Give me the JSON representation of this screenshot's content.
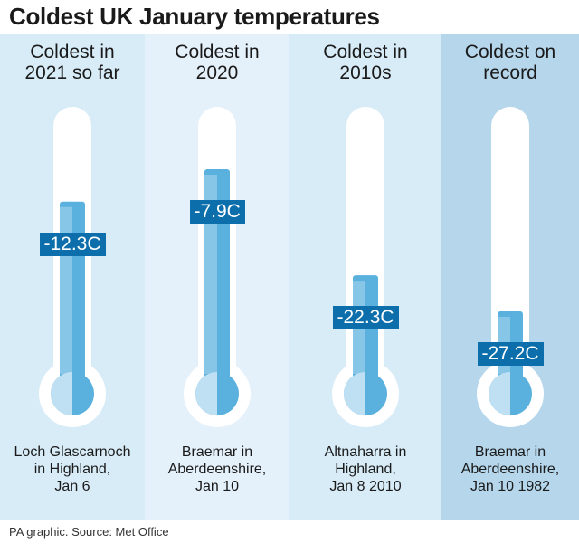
{
  "title": "Coldest UK January temperatures",
  "footer": "PA graphic. Source: Met Office",
  "colors": {
    "panels": [
      "#d8ecf8",
      "#e4f0fa",
      "#d8ecf8",
      "#b5d6eb"
    ],
    "tube": "#ffffff",
    "liquid": "#5bb1de",
    "liquid_light": "#bfe0f3",
    "label_bg": "#0c6fac"
  },
  "chart_data": {
    "type": "bar",
    "categories": [
      "Coldest in 2021 so far",
      "Coldest in 2020",
      "Coldest in 2010s",
      "Coldest on record"
    ],
    "values": [
      -12.3,
      -7.9,
      -22.3,
      -27.2
    ],
    "unit": "C",
    "panels": [
      {
        "heading": [
          "Coldest in",
          "2021 so far"
        ],
        "value": -12.3,
        "label": "-12.3C",
        "caption": [
          "Loch Glascarnoch",
          "in Highland,",
          "Jan 6"
        ]
      },
      {
        "heading": [
          "Coldest in",
          "2020"
        ],
        "value": -7.9,
        "label": "-7.9C",
        "caption": [
          "Braemar in",
          "Aberdeenshire,",
          "Jan 10"
        ]
      },
      {
        "heading": [
          "Coldest in",
          "2010s"
        ],
        "value": -22.3,
        "label": "-22.3C",
        "caption": [
          "Altnaharra in",
          "Highland,",
          "Jan 8 2010"
        ]
      },
      {
        "heading": [
          "Coldest on",
          "record"
        ],
        "value": -27.2,
        "label": "-27.2C",
        "caption": [
          "Braemar in",
          "Aberdeenshire,",
          "Jan 10 1982"
        ]
      }
    ]
  }
}
